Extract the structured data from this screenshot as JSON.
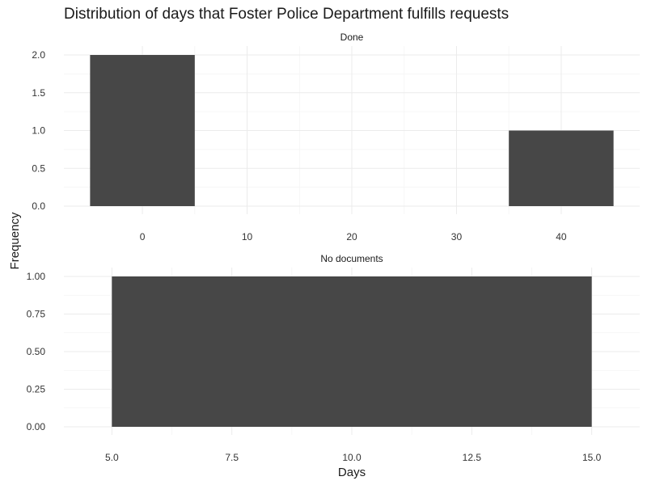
{
  "chart_data": {
    "type": "bar",
    "title": "Distribution of days that Foster Police Department fulfills requests",
    "xlabel": "Days",
    "ylabel": "Frequency",
    "bar_color": "#474747",
    "grid": true,
    "panels": [
      {
        "strip_label": "Done",
        "x_range": [
          -7.5,
          47.5
        ],
        "x_ticks": [
          "0",
          "10",
          "20",
          "30",
          "40"
        ],
        "x_tick_values": [
          0,
          10,
          20,
          30,
          40
        ],
        "y_range": [
          0,
          2.0
        ],
        "y_ticks": [
          "0.0",
          "0.5",
          "1.0",
          "1.5",
          "2.0"
        ],
        "y_tick_values": [
          0,
          0.5,
          1.0,
          1.5,
          2.0
        ],
        "bars": [
          {
            "x_start": -5,
            "x_end": 5,
            "value": 2
          },
          {
            "x_start": 35,
            "x_end": 45,
            "value": 1
          }
        ]
      },
      {
        "strip_label": "No documents",
        "x_range": [
          4.0,
          16.0
        ],
        "x_ticks": [
          "5.0",
          "7.5",
          "10.0",
          "12.5",
          "15.0"
        ],
        "x_tick_values": [
          5.0,
          7.5,
          10.0,
          12.5,
          15.0
        ],
        "y_range": [
          0,
          1.0
        ],
        "y_ticks": [
          "0.00",
          "0.25",
          "0.50",
          "0.75",
          "1.00"
        ],
        "y_tick_values": [
          0,
          0.25,
          0.5,
          0.75,
          1.0
        ],
        "bars": [
          {
            "x_start": 5,
            "x_end": 15,
            "value": 1
          }
        ]
      }
    ]
  }
}
